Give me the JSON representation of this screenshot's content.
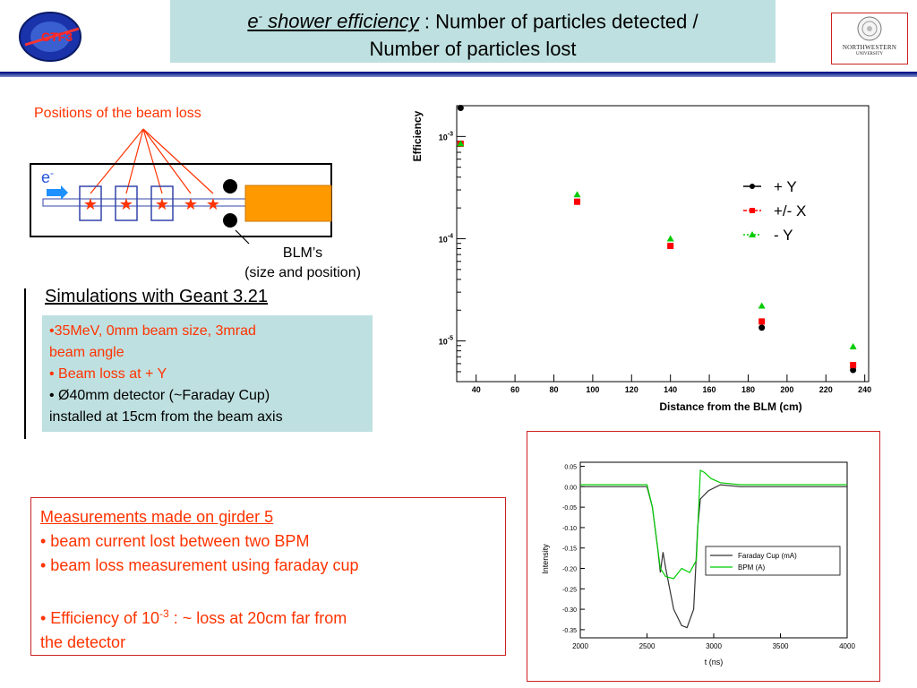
{
  "title": {
    "prefix": "e",
    "sup": "-",
    "italic_word": " shower efficiency",
    "rest_line1": " : Number of particles detected /",
    "line2": "Number of particles lost"
  },
  "logos": {
    "left": "CTF3",
    "right_name": "NORTHWESTERN",
    "right_sub": "UNIVERSITY"
  },
  "diagram": {
    "positions_label": "Positions of the beam loss",
    "particle": "e",
    "particle_sup": "-",
    "blm_label_line1": "BLM’s",
    "blm_label_line2": "(size and position)"
  },
  "simulations": {
    "title": "Simulations with Geant 3.21",
    "line1": "•35MeV,  0mm beam size, 3mrad",
    "line2": "beam angle",
    "line3": "• Beam loss at + Y",
    "line4": "• Ø40mm detector (~Faraday Cup)",
    "line5": "installed at 15cm from the beam axis"
  },
  "measurements": {
    "heading": "Measurements made on girder 5",
    "item1": "• beam current lost between two BPM",
    "item2": "• beam loss measurement using faraday cup",
    "item3_pre": "• Efficiency of 10",
    "item3_sup": "-3",
    "item3_post": " : ~ loss at 20cm far from",
    "item3_line2": "the detector"
  },
  "colors": {
    "title_bg": "#bfe0e0",
    "accent_red": "#ff3300",
    "series_plus_y": "#000000",
    "series_x": "#ff0000",
    "series_minus_y": "#00cc00",
    "faraday": "#333333",
    "bpm": "#00cc00",
    "detector": "#ff9900"
  },
  "chart_data": [
    {
      "type": "scatter",
      "ylabel": "Efficiency",
      "xlabel": "Distance from the BLM (cm)",
      "xlim": [
        30,
        242
      ],
      "ylim": [
        4e-06,
        0.002
      ],
      "yscale": "log",
      "x_ticks": [
        40,
        60,
        80,
        100,
        120,
        140,
        160,
        180,
        200,
        220,
        240
      ],
      "y_tick_labels": [
        {
          "base": "10",
          "exp": "-3"
        },
        {
          "base": "10",
          "exp": "-4"
        },
        {
          "base": "10",
          "exp": "-5"
        }
      ],
      "legend_position": "right-center",
      "series": [
        {
          "name": "+ Y",
          "x": [
            32,
            92,
            140,
            187,
            234
          ],
          "values": [
            0.0019,
            0.00023,
            8.5e-05,
            1.35e-05,
            5.2e-06
          ]
        },
        {
          "name": "+/- X",
          "x": [
            32,
            92,
            140,
            187,
            234
          ],
          "values": [
            0.00085,
            0.00023,
            8.5e-05,
            1.55e-05,
            5.8e-06
          ]
        },
        {
          "name": "- Y",
          "x": [
            32,
            92,
            140,
            187,
            234
          ],
          "values": [
            0.00085,
            0.00027,
            0.0001,
            2.2e-05,
            8.8e-06
          ]
        }
      ]
    },
    {
      "type": "line",
      "xlabel": "t (ns)",
      "ylabel": "Intensity",
      "xlim": [
        2000,
        4000
      ],
      "ylim": [
        -0.37,
        0.06
      ],
      "x_ticks": [
        2000,
        2500,
        3000,
        3500,
        4000
      ],
      "x_tick_labels": [
        "2000",
        "2500",
        "3000",
        "3500",
        "4000"
      ],
      "y_ticks": [
        0.05,
        0,
        -0.05,
        -0.1,
        -0.15,
        -0.2,
        -0.25,
        -0.3,
        -0.35
      ],
      "y_tick_labels": [
        "0.05",
        "0.00",
        "-0.05",
        "-0.10",
        "-0.15",
        "-0.20",
        "-0.25",
        "-0.30",
        "-0.35"
      ],
      "legend_position": "right-center",
      "series": [
        {
          "name": "Faraday Cup (mA)",
          "x": [
            2000,
            2500,
            2540,
            2580,
            2600,
            2620,
            2640,
            2700,
            2760,
            2800,
            2850,
            2880,
            2900,
            2960,
            3050,
            3200,
            3500,
            4000
          ],
          "values": [
            0.0,
            0.0,
            -0.05,
            -0.15,
            -0.21,
            -0.16,
            -0.2,
            -0.3,
            -0.34,
            -0.345,
            -0.3,
            -0.1,
            -0.03,
            -0.01,
            0.005,
            0.0,
            0.0,
            0.0
          ]
        },
        {
          "name": "BPM (A)",
          "x": [
            2000,
            2500,
            2540,
            2580,
            2600,
            2640,
            2700,
            2760,
            2820,
            2870,
            2900,
            2930,
            2980,
            3050,
            3200,
            3500,
            4000
          ],
          "values": [
            0.005,
            0.005,
            -0.05,
            -0.15,
            -0.2,
            -0.22,
            -0.225,
            -0.2,
            -0.21,
            -0.18,
            0.04,
            0.035,
            0.02,
            0.01,
            0.005,
            0.005,
            0.005
          ]
        }
      ]
    }
  ]
}
